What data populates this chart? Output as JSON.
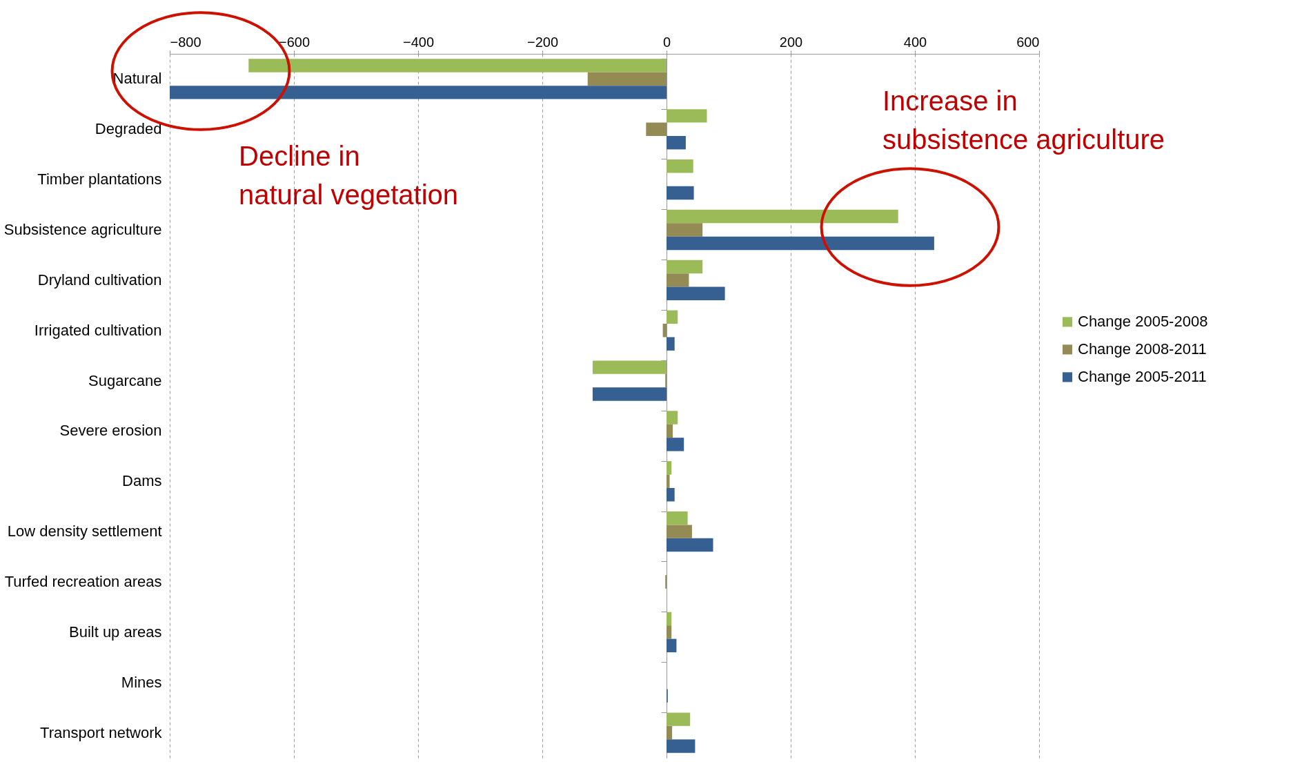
{
  "chart_data": {
    "type": "bar",
    "orientation": "horizontal",
    "categories": [
      "Natural",
      "Degraded",
      "Timber plantations",
      "Subsistence agriculture",
      "Dryland cultivation",
      "Irrigated cultivation",
      "Sugarcane",
      "Severe erosion",
      "Dams",
      "Low density settlement",
      "Turfed recreation areas",
      "Built up areas",
      "Mines",
      "Transport network"
    ],
    "series": [
      {
        "name": "Change 2005-2008",
        "color": "#9bbb59",
        "values": [
          -673,
          65,
          43,
          373,
          58,
          18,
          -119,
          18,
          8,
          34,
          0,
          8,
          0,
          38
        ]
      },
      {
        "name": "Change 2008-2011",
        "color": "#948a54",
        "values": [
          -127,
          -33,
          0,
          58,
          36,
          -6,
          -2,
          10,
          5,
          41,
          -2,
          8,
          0,
          9
        ]
      },
      {
        "name": "Change 2005-2011",
        "color": "#376092",
        "values": [
          -800,
          31,
          44,
          431,
          94,
          13,
          -119,
          28,
          13,
          75,
          0,
          16,
          2,
          46
        ]
      }
    ],
    "xlim": [
      -800,
      600
    ],
    "xticks": [
      -800,
      -600,
      -400,
      -200,
      0,
      200,
      400,
      600
    ],
    "grid": "x",
    "legend": "right",
    "annotations": [
      "Decline in\nnatural vegetation",
      "Increase in\nsubsistence agriculture"
    ]
  }
}
